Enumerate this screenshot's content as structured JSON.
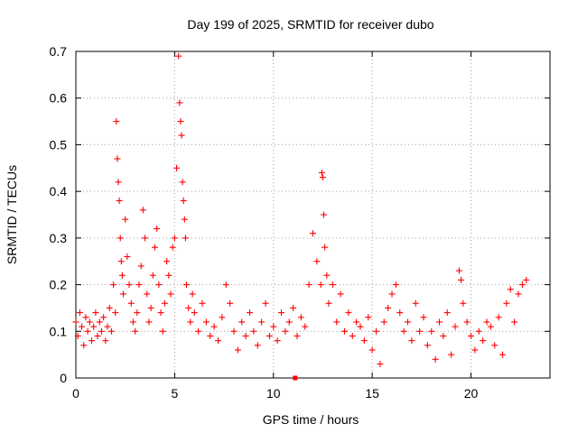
{
  "chart_data": {
    "type": "scatter",
    "title": "Day 199 of 2025, SRMTID for receiver dubo",
    "xlabel": "GPS time / hours",
    "ylabel": "SRMTID / TECUs",
    "xlim": [
      0,
      24
    ],
    "ylim": [
      0,
      0.7
    ],
    "xticks": [
      0,
      5,
      10,
      15,
      20
    ],
    "yticks": [
      0,
      0.1,
      0.2,
      0.3,
      0.4,
      0.5,
      0.6,
      0.7
    ],
    "grid": true,
    "marker": "plus",
    "color": "#ff0000",
    "series": [
      {
        "name": "SRMTID",
        "x": [
          0.0,
          0.1,
          0.2,
          0.3,
          0.4,
          0.5,
          0.6,
          0.7,
          0.8,
          0.9,
          1.0,
          1.1,
          1.2,
          1.3,
          1.4,
          1.5,
          1.6,
          1.7,
          1.8,
          1.9,
          2.0,
          2.05,
          2.1,
          2.15,
          2.2,
          2.25,
          2.3,
          2.35,
          2.4,
          2.5,
          2.6,
          2.7,
          2.8,
          2.9,
          3.0,
          3.1,
          3.2,
          3.3,
          3.4,
          3.5,
          3.6,
          3.7,
          3.8,
          3.9,
          4.0,
          4.1,
          4.2,
          4.3,
          4.4,
          4.5,
          4.6,
          4.7,
          4.8,
          4.9,
          5.0,
          5.1,
          5.2,
          5.25,
          5.3,
          5.35,
          5.4,
          5.45,
          5.5,
          5.55,
          5.6,
          5.7,
          5.8,
          5.9,
          6.0,
          6.2,
          6.4,
          6.6,
          6.8,
          7.0,
          7.2,
          7.4,
          7.6,
          7.8,
          8.0,
          8.2,
          8.4,
          8.6,
          8.8,
          9.0,
          9.2,
          9.4,
          9.6,
          9.8,
          10.0,
          10.2,
          10.4,
          10.6,
          10.8,
          11.0,
          11.2,
          11.4,
          11.6,
          11.8,
          12.0,
          12.2,
          12.4,
          12.45,
          12.5,
          12.55,
          12.6,
          12.7,
          12.8,
          13.0,
          13.2,
          13.4,
          13.6,
          13.8,
          14.0,
          14.2,
          14.4,
          14.6,
          14.8,
          15.0,
          15.2,
          15.4,
          15.6,
          15.8,
          16.0,
          16.2,
          16.4,
          16.6,
          16.8,
          17.0,
          17.2,
          17.4,
          17.6,
          17.8,
          18.0,
          18.2,
          18.4,
          18.6,
          18.8,
          19.0,
          19.2,
          19.4,
          19.5,
          19.6,
          19.8,
          20.0,
          20.2,
          20.4,
          20.6,
          20.8,
          21.0,
          21.2,
          21.4,
          21.6,
          21.8,
          22.0,
          22.2,
          22.4,
          22.6,
          22.8
        ],
        "y": [
          0.12,
          0.09,
          0.14,
          0.11,
          0.07,
          0.13,
          0.1,
          0.12,
          0.08,
          0.11,
          0.14,
          0.09,
          0.12,
          0.1,
          0.13,
          0.08,
          0.11,
          0.15,
          0.1,
          0.2,
          0.14,
          0.55,
          0.47,
          0.42,
          0.38,
          0.3,
          0.25,
          0.22,
          0.18,
          0.34,
          0.26,
          0.2,
          0.16,
          0.12,
          0.1,
          0.14,
          0.2,
          0.24,
          0.36,
          0.3,
          0.18,
          0.12,
          0.15,
          0.22,
          0.28,
          0.32,
          0.2,
          0.14,
          0.1,
          0.16,
          0.25,
          0.22,
          0.18,
          0.28,
          0.3,
          0.45,
          0.69,
          0.59,
          0.55,
          0.52,
          0.42,
          0.38,
          0.34,
          0.3,
          0.2,
          0.15,
          0.12,
          0.18,
          0.14,
          0.1,
          0.16,
          0.12,
          0.09,
          0.11,
          0.08,
          0.13,
          0.2,
          0.16,
          0.1,
          0.06,
          0.12,
          0.09,
          0.14,
          0.1,
          0.07,
          0.12,
          0.16,
          0.09,
          0.11,
          0.08,
          0.14,
          0.1,
          0.12,
          0.15,
          0.09,
          0.13,
          0.11,
          0.2,
          0.31,
          0.25,
          0.2,
          0.44,
          0.43,
          0.35,
          0.28,
          0.22,
          0.16,
          0.2,
          0.12,
          0.18,
          0.1,
          0.14,
          0.09,
          0.12,
          0.11,
          0.08,
          0.13,
          0.06,
          0.1,
          0.03,
          0.12,
          0.15,
          0.18,
          0.2,
          0.14,
          0.1,
          0.12,
          0.08,
          0.16,
          0.1,
          0.13,
          0.07,
          0.1,
          0.04,
          0.12,
          0.09,
          0.14,
          0.05,
          0.11,
          0.23,
          0.21,
          0.16,
          0.12,
          0.09,
          0.06,
          0.1,
          0.08,
          0.12,
          0.11,
          0.07,
          0.13,
          0.05,
          0.16,
          0.19,
          0.12,
          0.18,
          0.2,
          0.21
        ]
      }
    ],
    "outliers": [
      {
        "x": 11.1,
        "y": 0.0
      }
    ]
  }
}
